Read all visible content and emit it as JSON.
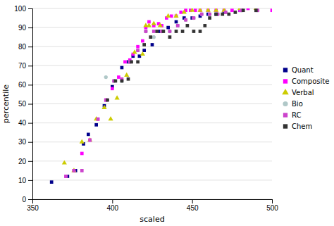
{
  "chart_data": {
    "type": "scatter",
    "xlabel": "scaled",
    "ylabel": "percentile",
    "xlim": [
      350,
      500
    ],
    "ylim": [
      0,
      100
    ],
    "xticks": [
      350,
      400,
      450,
      500
    ],
    "yticks": [
      0,
      10,
      20,
      30,
      40,
      50,
      60,
      70,
      80,
      90,
      100
    ],
    "grid": "y",
    "legend": "right",
    "series": [
      {
        "name": "Quant",
        "color": "#00008B",
        "marker": "square",
        "x": [
          362,
          372,
          377,
          382,
          385,
          390,
          395,
          400,
          406,
          410,
          413,
          417,
          420,
          425,
          430,
          435,
          440,
          445,
          450,
          455,
          460,
          465,
          470,
          480,
          490
        ],
        "values": [
          9,
          12,
          15,
          29,
          34,
          39,
          49,
          59,
          69,
          72,
          75,
          75,
          78,
          81,
          88,
          90,
          93,
          95,
          95,
          96,
          97,
          97,
          98,
          99,
          99
        ]
      },
      {
        "name": "Composite",
        "color": "#FF00FF",
        "marker": "square",
        "x": [
          371,
          376,
          381,
          386,
          391,
          396,
          400,
          404,
          408,
          411,
          413,
          416,
          419,
          421,
          423,
          426,
          429,
          431,
          434,
          437,
          440,
          443,
          446,
          449,
          452,
          455,
          460,
          465,
          470,
          475,
          480,
          485,
          490,
          500
        ],
        "values": [
          12,
          15,
          24,
          31,
          42,
          52,
          58,
          64,
          72,
          73,
          76,
          80,
          83,
          90,
          93,
          91,
          92,
          91,
          95,
          96,
          96,
          98,
          99,
          99,
          99,
          99,
          99,
          99,
          99,
          99,
          99,
          100,
          100,
          99
        ]
      },
      {
        "name": "Verbal",
        "color": "#cccc00",
        "marker": "triangle",
        "x": [
          370,
          376,
          381,
          386,
          390,
          395,
          399,
          403,
          409,
          414,
          419,
          421,
          423,
          426,
          430,
          435,
          440,
          445,
          450,
          455,
          460,
          465,
          470,
          480,
          490
        ],
        "values": [
          19,
          15,
          30,
          31,
          42,
          48,
          42,
          53,
          65,
          77,
          76,
          91,
          91,
          92,
          91,
          96,
          96,
          98,
          99,
          99,
          99,
          99,
          99,
          100,
          100
        ]
      },
      {
        "name": "Bio",
        "color": "#b0c8c8",
        "marker": "circle",
        "x": [
          396,
          401,
          406,
          411,
          416,
          421,
          426,
          431,
          436,
          441,
          446,
          451,
          456,
          461,
          466,
          471,
          481,
          491
        ],
        "values": [
          64,
          62,
          62,
          72,
          78,
          88,
          85,
          88,
          88,
          91,
          94,
          95,
          97,
          97,
          97,
          98,
          99,
          99
        ]
      },
      {
        "name": "RC",
        "color": "#cc44cc",
        "marker": "square",
        "x": [
          371,
          376,
          381,
          386,
          391,
          396,
          401,
          406,
          411,
          416,
          421,
          426,
          431,
          436,
          441,
          446,
          451,
          456,
          461,
          466,
          471,
          481,
          491
        ],
        "values": [
          12,
          15,
          15,
          31,
          42,
          52,
          62,
          63,
          72,
          78,
          88,
          88,
          88,
          88,
          91,
          94,
          95,
          97,
          97,
          97,
          98,
          99,
          99
        ]
      },
      {
        "name": "Chem",
        "color": "#333333",
        "marker": "square",
        "x": [
          397,
          402,
          406,
          410,
          412,
          416,
          420,
          424,
          428,
          432,
          436,
          440,
          444,
          447,
          451,
          455,
          458,
          461,
          465,
          469,
          473,
          477,
          482,
          490
        ],
        "values": [
          52,
          62,
          62,
          63,
          72,
          72,
          81,
          85,
          88,
          88,
          85,
          88,
          88,
          91,
          88,
          88,
          91,
          95,
          97,
          97,
          97,
          98,
          99,
          99
        ]
      }
    ]
  }
}
